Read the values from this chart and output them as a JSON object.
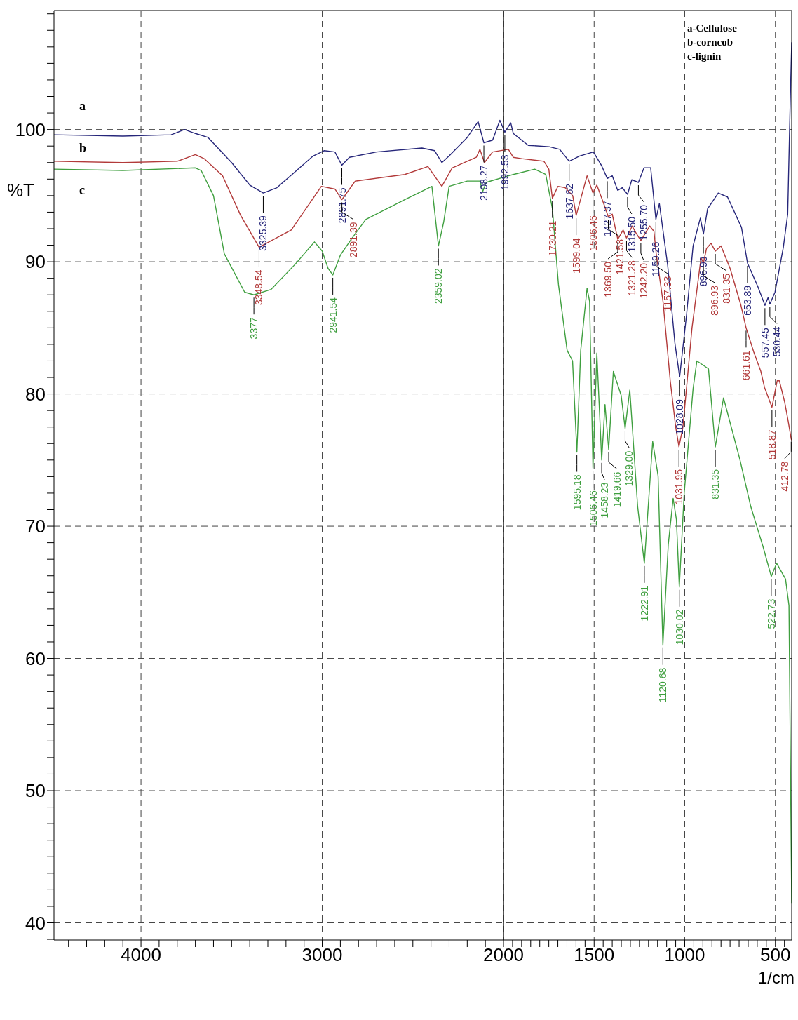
{
  "chart_data": {
    "type": "line",
    "ylabel": "%T",
    "xlabel": "1/cm",
    "xlim": [
      4480,
      410
    ],
    "ylim": [
      38.7,
      109
    ],
    "xticks": [
      {
        "value": 4400,
        "label": null
      },
      {
        "value": 4300,
        "label": null
      },
      {
        "value": 4200,
        "label": null
      },
      {
        "value": 4100,
        "label": null
      },
      4000,
      {
        "value": 3900,
        "label": null
      },
      {
        "value": 3800,
        "label": null
      },
      {
        "value": 3700,
        "label": null
      },
      {
        "value": 3600,
        "label": null
      },
      {
        "value": 3500,
        "label": null
      },
      {
        "value": 3400,
        "label": null
      },
      {
        "value": 3300,
        "label": null
      },
      {
        "value": 3200,
        "label": null
      },
      {
        "value": 3100,
        "label": null
      },
      3000,
      {
        "value": 2900,
        "label": null
      },
      {
        "value": 2800,
        "label": null
      },
      {
        "value": 2700,
        "label": null
      },
      {
        "value": 2600,
        "label": null
      },
      {
        "value": 2500,
        "label": null
      },
      {
        "value": 2400,
        "label": null
      },
      {
        "value": 2300,
        "label": null
      },
      {
        "value": 2200,
        "label": null
      },
      {
        "value": 2100,
        "label": null
      },
      2000,
      {
        "value": 1950,
        "label": null
      },
      {
        "value": 1900,
        "label": null
      },
      {
        "value": 1850,
        "label": null
      },
      {
        "value": 1800,
        "label": null
      },
      {
        "value": 1750,
        "label": null
      },
      {
        "value": 1700,
        "label": null
      },
      {
        "value": 1650,
        "label": null
      },
      {
        "value": 1600,
        "label": null
      },
      {
        "value": 1550,
        "label": null
      },
      1500,
      {
        "value": 1450,
        "label": null
      },
      {
        "value": 1400,
        "label": null
      },
      {
        "value": 1350,
        "label": null
      },
      {
        "value": 1300,
        "label": null
      },
      {
        "value": 1250,
        "label": null
      },
      {
        "value": 1200,
        "label": null
      },
      {
        "value": 1150,
        "label": null
      },
      {
        "value": 1100,
        "label": null
      },
      {
        "value": 1050,
        "label": null
      },
      1000,
      {
        "value": 950,
        "label": null
      },
      {
        "value": 900,
        "label": null
      },
      {
        "value": 850,
        "label": null
      },
      {
        "value": 800,
        "label": null
      },
      {
        "value": 750,
        "label": null
      },
      {
        "value": 700,
        "label": null
      },
      {
        "value": 650,
        "label": null
      },
      {
        "value": 600,
        "label": null
      },
      {
        "value": 550,
        "label": null
      },
      500,
      {
        "value": 450,
        "label": null
      }
    ],
    "yticks": [
      {
        "value": 38.75,
        "label": null
      },
      40,
      {
        "value": 41.25,
        "label": null
      },
      {
        "value": 42.5,
        "label": null
      },
      {
        "value": 43.75,
        "label": null
      },
      {
        "value": 45,
        "label": null
      },
      {
        "value": 46.25,
        "label": null
      },
      {
        "value": 47.5,
        "label": null
      },
      {
        "value": 48.75,
        "label": null
      },
      50,
      {
        "value": 51.25,
        "label": null
      },
      {
        "value": 52.5,
        "label": null
      },
      {
        "value": 53.75,
        "label": null
      },
      {
        "value": 55,
        "label": null
      },
      {
        "value": 56.25,
        "label": null
      },
      {
        "value": 57.5,
        "label": null
      },
      {
        "value": 58.75,
        "label": null
      },
      60,
      {
        "value": 61.25,
        "label": null
      },
      {
        "value": 62.5,
        "label": null
      },
      {
        "value": 63.75,
        "label": null
      },
      {
        "value": 65,
        "label": null
      },
      {
        "value": 66.25,
        "label": null
      },
      {
        "value": 67.5,
        "label": null
      },
      {
        "value": 68.75,
        "label": null
      },
      70,
      {
        "value": 71.25,
        "label": null
      },
      {
        "value": 72.5,
        "label": null
      },
      {
        "value": 73.75,
        "label": null
      },
      {
        "value": 75,
        "label": null
      },
      {
        "value": 76.25,
        "label": null
      },
      {
        "value": 77.5,
        "label": null
      },
      {
        "value": 78.75,
        "label": null
      },
      80,
      {
        "value": 81.25,
        "label": null
      },
      {
        "value": 82.5,
        "label": null
      },
      {
        "value": 83.75,
        "label": null
      },
      {
        "value": 85,
        "label": null
      },
      {
        "value": 86.25,
        "label": null
      },
      {
        "value": 87.5,
        "label": null
      },
      {
        "value": 88.75,
        "label": null
      },
      90,
      {
        "value": 91.25,
        "label": null
      },
      {
        "value": 92.5,
        "label": null
      },
      {
        "value": 93.75,
        "label": null
      },
      {
        "value": 95,
        "label": null
      },
      {
        "value": 96.25,
        "label": null
      },
      {
        "value": 97.5,
        "label": null
      },
      {
        "value": 98.75,
        "label": null
      },
      100,
      {
        "value": 101.25,
        "label": null
      },
      {
        "value": 102.5,
        "label": null
      },
      {
        "value": 103.75,
        "label": null
      },
      {
        "value": 105,
        "label": null
      },
      {
        "value": 106.25,
        "label": null
      },
      {
        "value": 107.5,
        "label": null
      },
      {
        "value": 108.75,
        "label": null
      }
    ],
    "grid": true,
    "marker": "none",
    "ref_lines": [
      {
        "axis": "x",
        "value": 2000,
        "color": "#000000",
        "line_style": "solid"
      }
    ],
    "series": [
      {
        "name": "a",
        "color": "#26267a",
        "x": [
          4480,
          4100,
          3834,
          3760,
          3700,
          3630,
          3500,
          3400,
          3325.39,
          3250,
          3150,
          3050,
          2990,
          2930,
          2891.75,
          2850,
          2700,
          2450,
          2380,
          2340,
          2300,
          2200,
          2140,
          2108.27,
          2060,
          2020,
          1992.53,
          1960,
          1946,
          1900,
          1863,
          1748,
          1690,
          1637.62,
          1580,
          1504,
          1460,
          1427.37,
          1400,
          1370,
          1345,
          1315.5,
          1292,
          1255.7,
          1225,
          1188,
          1159.26,
          1140,
          1094,
          1054,
          1028.09,
          990,
          954,
          914,
          896.93,
          874,
          815,
          764,
          687,
          653.89,
          596,
          557.45,
          540,
          530.44,
          502,
          456,
          432,
          420,
          410
        ],
        "values": [
          99.6,
          99.5,
          99.6,
          100.0,
          99.7,
          99.4,
          97.5,
          95.8,
          95.2,
          95.6,
          96.8,
          98.0,
          98.4,
          98.3,
          97.3,
          97.9,
          98.3,
          98.6,
          98.4,
          97.5,
          98.0,
          99.4,
          100.6,
          99.0,
          99.2,
          100.7,
          99.8,
          100.5,
          99.7,
          99.2,
          98.8,
          98.7,
          98.5,
          97.6,
          98.0,
          98.3,
          97.3,
          96.3,
          96.5,
          95.4,
          95.6,
          95.1,
          96.2,
          96.0,
          97.1,
          97.1,
          93.2,
          94.4,
          89.7,
          83.8,
          81.3,
          86.0,
          91.2,
          93.3,
          92.1,
          94.0,
          95.2,
          94.9,
          92.6,
          89.9,
          88.1,
          86.7,
          87.3,
          86.8,
          87.7,
          91.1,
          93.6,
          101.0,
          106.6
        ]
      },
      {
        "name": "b",
        "color": "#b23a3a",
        "x": [
          4480,
          4100,
          3800,
          3700,
          3652,
          3550,
          3450,
          3348.54,
          3171,
          3005,
          2930,
          2891.39,
          2818,
          2545,
          2417,
          2340,
          2283,
          2150,
          2130,
          2105,
          2060,
          1973,
          1946,
          1900,
          1777,
          1750,
          1730.21,
          1700,
          1660,
          1618,
          1599.04,
          1539,
          1506.46,
          1485,
          1450,
          1421.58,
          1400,
          1369.5,
          1340,
          1321.28,
          1290,
          1270,
          1242.2,
          1193,
          1170,
          1157.33,
          1120,
          1080,
          1050,
          1031.95,
          1010,
          960,
          910,
          896.93,
          880,
          855,
          831.35,
          800,
          750,
          690,
          661.61,
          620,
          580,
          560,
          518.87,
          490,
          478,
          449,
          430,
          412.78,
          410
        ],
        "values": [
          97.6,
          97.5,
          97.6,
          98.1,
          97.8,
          96.5,
          93.5,
          91.1,
          92.4,
          95.7,
          95.5,
          94.7,
          96.1,
          96.6,
          97.2,
          95.7,
          97.1,
          97.9,
          98.5,
          97.5,
          98.3,
          98.5,
          97.9,
          97.8,
          97.6,
          97.0,
          94.8,
          95.7,
          95.6,
          95.0,
          93.5,
          96.5,
          95.2,
          95.8,
          94.5,
          93.4,
          93.6,
          91.7,
          92.4,
          91.8,
          92.7,
          92.2,
          91.6,
          92.7,
          92.3,
          90.6,
          87.0,
          81.0,
          77.5,
          76.0,
          77.5,
          85.0,
          90.3,
          89.9,
          91.0,
          91.4,
          90.8,
          91.2,
          89.5,
          86.7,
          85.0,
          83.2,
          81.7,
          80.5,
          79.0,
          81.0,
          81.0,
          79.4,
          78.0,
          76.6,
          76.5
        ]
      },
      {
        "name": "c",
        "color": "#3f9f3f",
        "x": [
          4480,
          4100,
          3700,
          3668,
          3600,
          3540,
          3428,
          3377,
          3283,
          3150,
          3043,
          3000,
          2968,
          2941.54,
          2900,
          2840,
          2760,
          2545,
          2395,
          2359.02,
          2330,
          2300,
          2200,
          2130,
          2115,
          2096,
          1973,
          1946,
          1828,
          1767,
          1730,
          1697,
          1649,
          1619,
          1595.18,
          1574,
          1539,
          1525,
          1506.46,
          1485,
          1458.23,
          1440,
          1419.66,
          1394,
          1351,
          1329,
          1303,
          1260,
          1222.91,
          1177,
          1147,
          1120.68,
          1091,
          1064,
          1046,
          1030.02,
          1003,
          954,
          933,
          869,
          831.35,
          786,
          695,
          636,
          567,
          522.73,
          493,
          444,
          425,
          410
        ],
        "values": [
          97.0,
          96.9,
          97.1,
          96.9,
          95.0,
          90.6,
          87.7,
          87.5,
          87.9,
          89.8,
          91.5,
          90.8,
          89.5,
          89.0,
          90.5,
          91.7,
          93.2,
          94.7,
          95.7,
          91.2,
          93.0,
          95.7,
          96.1,
          96.1,
          95.3,
          96.0,
          96.5,
          96.6,
          97.0,
          96.6,
          94.0,
          88.3,
          83.3,
          82.5,
          75.6,
          83.3,
          88.0,
          87.0,
          74.4,
          83.1,
          75.0,
          79.2,
          75.8,
          81.7,
          79.9,
          77.4,
          80.3,
          71.5,
          67.2,
          76.4,
          73.8,
          61.0,
          68.6,
          72.1,
          70.5,
          65.4,
          72.5,
          80.4,
          82.5,
          81.9,
          76.0,
          79.7,
          75.0,
          71.5,
          68.4,
          66.2,
          67.2,
          66.0,
          64.0,
          41.5
        ]
      }
    ],
    "annotations": [
      "a-Cellulose",
      "b-corncob",
      "c-lignin",
      {
        "text": "3325.39",
        "x": 3325.39,
        "y": 95.2
      },
      {
        "text": "2891.75",
        "x": 2891.75,
        "y": 97.3
      },
      {
        "text": "2108.27",
        "x": 2108.27,
        "y": 99.0
      },
      {
        "text": "1992.53",
        "x": 1992.53,
        "y": 99.8
      },
      {
        "text": "1637.62",
        "x": 1637.62,
        "y": 97.6
      },
      {
        "text": "1427.37",
        "x": 1427.37,
        "y": 96.3
      },
      {
        "text": "1315.50",
        "x": 1315.5,
        "y": 95.1
      },
      {
        "text": "1255.70",
        "x": 1255.7,
        "y": 96.0
      },
      {
        "text": "1159.26",
        "x": 1159.26,
        "y": 93.2
      },
      {
        "text": "1028.09",
        "x": 1028.09,
        "y": 81.3
      },
      {
        "text": "896.93",
        "x": 896.93,
        "y": 92.1
      },
      {
        "text": "653.89",
        "x": 653.89,
        "y": 89.9
      },
      {
        "text": "557.45",
        "x": 557.45,
        "y": 86.7
      },
      {
        "text": "530.44",
        "x": 530.44,
        "y": 86.8
      },
      {
        "text": "3348.54",
        "x": 3348.54,
        "y": 91.1
      },
      {
        "text": "2891.39",
        "x": 2891.39,
        "y": 94.7
      },
      {
        "text": "1730.21",
        "x": 1730.21,
        "y": 94.8
      },
      {
        "text": "1599.04",
        "x": 1599.04,
        "y": 93.5
      },
      {
        "text": "1506.46",
        "x": 1506.46,
        "y": 95.2
      },
      {
        "text": "1421.58",
        "x": 1421.58,
        "y": 93.4
      },
      {
        "text": "1369.50",
        "x": 1369.5,
        "y": 91.7
      },
      {
        "text": "1321.28",
        "x": 1321.28,
        "y": 91.8
      },
      {
        "text": "1242.20",
        "x": 1242.2,
        "y": 91.6
      },
      {
        "text": "1157.33",
        "x": 1157.33,
        "y": 90.6
      },
      {
        "text": "1031.95",
        "x": 1031.95,
        "y": 76.0
      },
      {
        "text": "896.93",
        "x": 896.93,
        "y": 89.9
      },
      {
        "text": "831.35",
        "x": 831.35,
        "y": 90.8
      },
      {
        "text": "661.61",
        "x": 661.61,
        "y": 85.0
      },
      {
        "text": "518.87",
        "x": 518.87,
        "y": 79.0
      },
      {
        "text": "412.78",
        "x": 412.78,
        "y": 76.6
      },
      {
        "text": "3377",
        "x": 3377,
        "y": 87.5
      },
      {
        "text": "2941.54",
        "x": 2941.54,
        "y": 89.0
      },
      {
        "text": "2359.02",
        "x": 2359.02,
        "y": 91.2
      },
      {
        "text": "1595.18",
        "x": 1595.18,
        "y": 75.6
      },
      {
        "text": "1506.46",
        "x": 1506.46,
        "y": 74.4
      },
      {
        "text": "1458.23",
        "x": 1458.23,
        "y": 75.0
      },
      {
        "text": "1419.66",
        "x": 1419.66,
        "y": 75.8
      },
      {
        "text": "1329.00",
        "x": 1329,
        "y": 77.4
      },
      {
        "text": "1222.91",
        "x": 1222.91,
        "y": 67.2
      },
      {
        "text": "1120.68",
        "x": 1120.68,
        "y": 61.0
      },
      {
        "text": "1030.02",
        "x": 1030.02,
        "y": 65.4
      },
      {
        "text": "831.35",
        "x": 831.35,
        "y": 76.0
      },
      {
        "text": "522.73",
        "x": 522.73,
        "y": 66.2
      }
    ]
  }
}
